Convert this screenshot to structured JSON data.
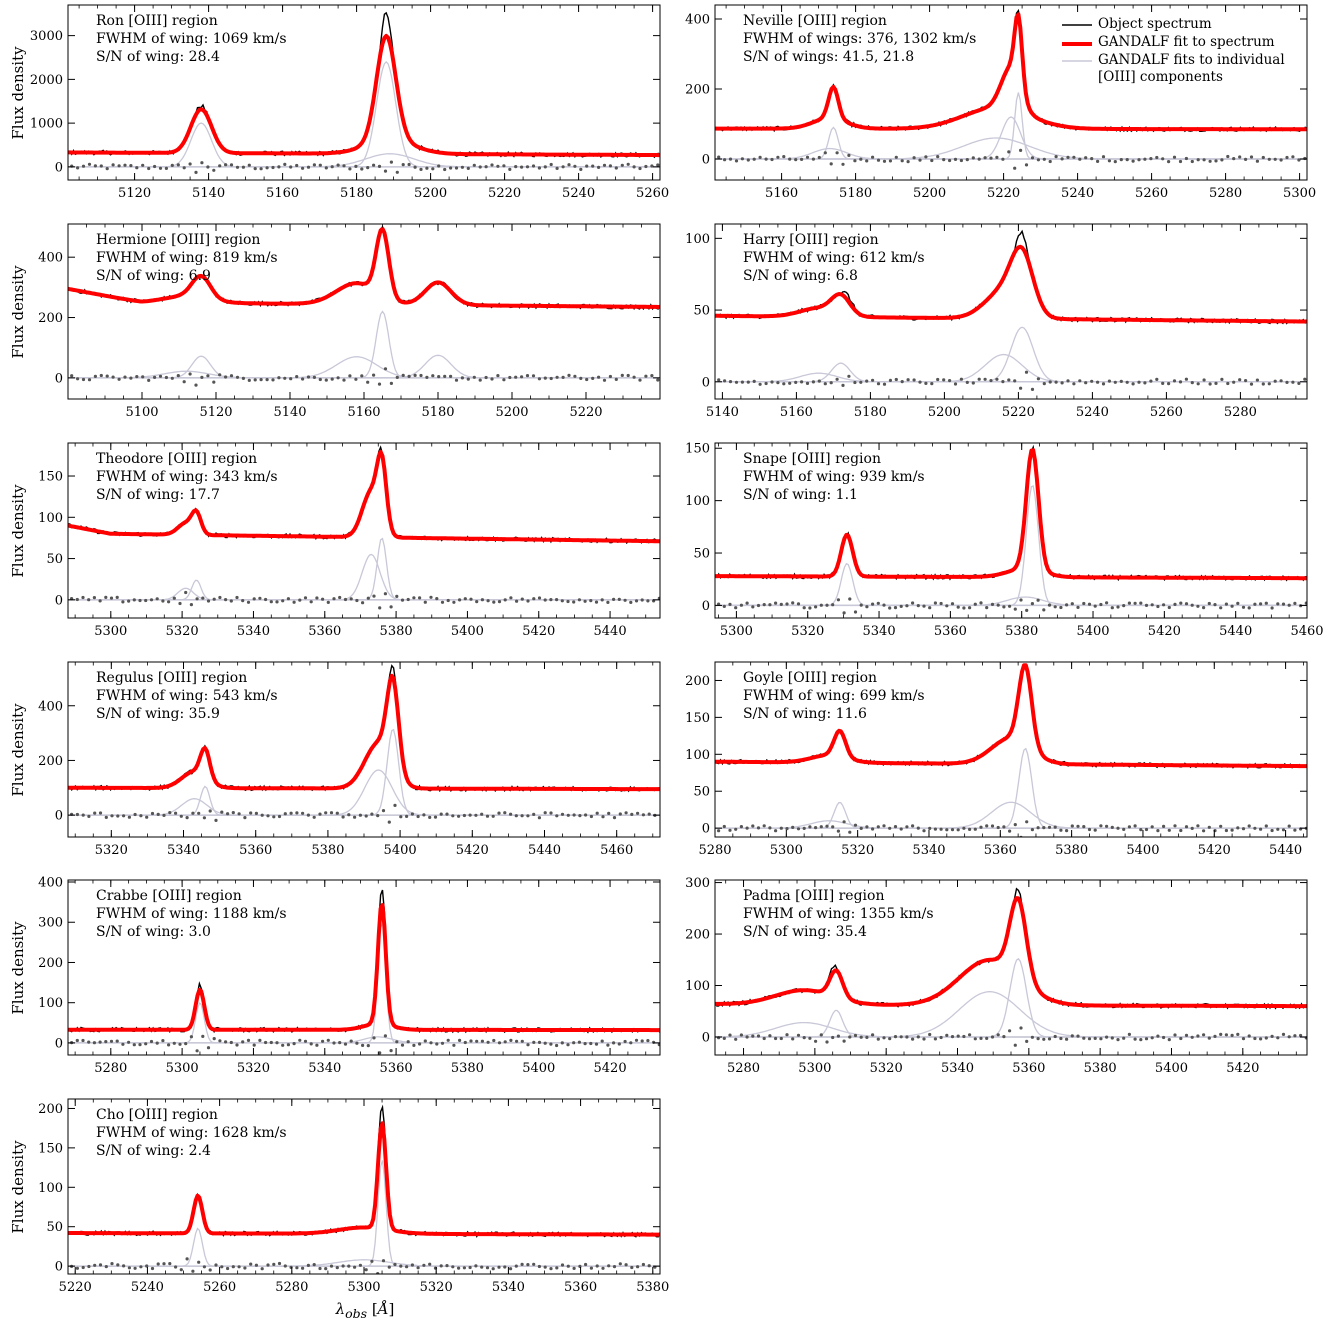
{
  "xlabel": "λobs [Å]",
  "ylabel": "Flux density",
  "legend": {
    "object": "Object spectrum",
    "fit": "GANDALF fit to spectrum",
    "components": "GANDALF fits to individual [OIII] components"
  },
  "colors": {
    "object": "#000000",
    "fit": "#ff0000",
    "components": "#c8c8d8",
    "residuals": "#555555"
  },
  "chart_data": [
    {
      "type": "line",
      "name": "Ron",
      "lines": [
        "Ron [OIII] region",
        "FWHM of wing: 1069 km/s",
        "S/N of wing: 28.4"
      ],
      "xlim": [
        5102,
        5262
      ],
      "ylim": [
        -300,
        3700
      ],
      "xticks": [
        5120,
        5140,
        5160,
        5180,
        5200,
        5220,
        5240,
        5260
      ],
      "yticks": [
        0,
        1000,
        2000,
        3000
      ],
      "continuum": [
        [
          5102,
          330
        ],
        [
          5262,
          270
        ]
      ],
      "components": [
        {
          "center": 5138,
          "sigma": 2.8,
          "amp": 1000
        },
        {
          "center": 5188,
          "sigma": 2.6,
          "amp": 2400
        },
        {
          "center": 5189,
          "sigma": 6.5,
          "amp": 300
        }
      ],
      "object_peaks": [
        [
          5138,
          1400
        ],
        [
          5188,
          3550
        ]
      ]
    },
    {
      "type": "line",
      "name": "Neville",
      "lines": [
        "Neville [OIII] region",
        "FWHM of wings: 376, 1302 km/s",
        "S/N of wings: 41.5, 21.8"
      ],
      "xlim": [
        5142,
        5302
      ],
      "ylim": [
        -60,
        440
      ],
      "xticks": [
        5160,
        5180,
        5200,
        5220,
        5240,
        5260,
        5280,
        5300
      ],
      "yticks": [
        0,
        200,
        400
      ],
      "continuum": [
        [
          5142,
          87
        ],
        [
          5302,
          85
        ]
      ],
      "components": [
        {
          "center": 5174,
          "sigma": 1.3,
          "amp": 90
        },
        {
          "center": 5222,
          "sigma": 2.6,
          "amp": 120
        },
        {
          "center": 5224,
          "sigma": 1.0,
          "amp": 190
        },
        {
          "center": 5218,
          "sigma": 9.0,
          "amp": 60
        },
        {
          "center": 5173,
          "sigma": 4.5,
          "amp": 30
        }
      ],
      "object_peaks": [
        [
          5174,
          195
        ],
        [
          5224,
          430
        ]
      ]
    },
    {
      "type": "line",
      "name": "Hermione",
      "lines": [
        "Hermione [OIII] region",
        "FWHM of wing: 819 km/s",
        "S/N of wing: 6.9"
      ],
      "xlim": [
        5080,
        5240
      ],
      "ylim": [
        -70,
        510
      ],
      "xticks": [
        5100,
        5120,
        5140,
        5160,
        5180,
        5200,
        5220
      ],
      "yticks": [
        0,
        200,
        400
      ],
      "continuum": [
        [
          5080,
          295
        ],
        [
          5100,
          250
        ],
        [
          5240,
          235
        ]
      ],
      "components": [
        {
          "center": 5116,
          "sigma": 2.5,
          "amp": 72
        },
        {
          "center": 5165,
          "sigma": 1.7,
          "amp": 220
        },
        {
          "center": 5158,
          "sigma": 5.5,
          "amp": 70
        },
        {
          "center": 5180,
          "sigma": 3.5,
          "amp": 75
        },
        {
          "center": 5112,
          "sigma": 6.0,
          "amp": 22
        }
      ],
      "object_peaks": [
        [
          5116,
          305
        ],
        [
          5165,
          490
        ]
      ]
    },
    {
      "type": "line",
      "name": "Harry",
      "lines": [
        "Harry [OIII] region",
        "FWHM of wing: 612 km/s",
        "S/N of wing: 6.8"
      ],
      "xlim": [
        5138,
        5298
      ],
      "ylim": [
        -12,
        110
      ],
      "xticks": [
        5140,
        5160,
        5180,
        5200,
        5220,
        5240,
        5260,
        5280
      ],
      "yticks": [
        0,
        50,
        100
      ],
      "continuum": [
        [
          5138,
          46
        ],
        [
          5298,
          42
        ]
      ],
      "components": [
        {
          "center": 5172,
          "sigma": 2.5,
          "amp": 13
        },
        {
          "center": 5221,
          "sigma": 3.0,
          "amp": 38
        },
        {
          "center": 5216,
          "sigma": 5.0,
          "amp": 19
        },
        {
          "center": 5166,
          "sigma": 5.0,
          "amp": 6
        }
      ],
      "object_peaks": [
        [
          5174,
          60
        ],
        [
          5221,
          104
        ]
      ]
    },
    {
      "type": "line",
      "name": "Theodore",
      "lines": [
        "Theodore [OIII] region",
        "FWHM of wing: 343 km/s",
        "S/N of wing: 17.7"
      ],
      "xlim": [
        5288,
        5454
      ],
      "ylim": [
        -22,
        190
      ],
      "xticks": [
        5300,
        5320,
        5340,
        5360,
        5380,
        5400,
        5420,
        5440
      ],
      "yticks": [
        0,
        50,
        100,
        150
      ],
      "continuum": [
        [
          5288,
          90
        ],
        [
          5300,
          80
        ],
        [
          5454,
          71
        ]
      ],
      "components": [
        {
          "center": 5324,
          "sigma": 1.3,
          "amp": 24
        },
        {
          "center": 5321,
          "sigma": 2.2,
          "amp": 14
        },
        {
          "center": 5376,
          "sigma": 1.3,
          "amp": 75
        },
        {
          "center": 5373,
          "sigma": 2.5,
          "amp": 55
        }
      ],
      "object_peaks": [
        [
          5324,
          103
        ],
        [
          5376,
          182
        ]
      ]
    },
    {
      "type": "line",
      "name": "Snape",
      "lines": [
        "Snape [OIII] region",
        "FWHM of wing: 939 km/s",
        "S/N of wing: 1.1"
      ],
      "xlim": [
        5294,
        5460
      ],
      "ylim": [
        -12,
        155
      ],
      "xticks": [
        5300,
        5320,
        5340,
        5360,
        5380,
        5400,
        5420,
        5440,
        5460
      ],
      "yticks": [
        0,
        50,
        100,
        150
      ],
      "continuum": [
        [
          5294,
          28
        ],
        [
          5460,
          26
        ]
      ],
      "components": [
        {
          "center": 5331,
          "sigma": 1.6,
          "amp": 40
        },
        {
          "center": 5383,
          "sigma": 1.7,
          "amp": 115
        },
        {
          "center": 5381,
          "sigma": 5.0,
          "amp": 8
        }
      ],
      "object_peaks": [
        [
          5331,
          68
        ],
        [
          5383,
          150
        ]
      ]
    },
    {
      "type": "line",
      "name": "Regulus",
      "lines": [
        "Regulus [OIII] region",
        "FWHM of wing: 543 km/s",
        "S/N of wing: 35.9"
      ],
      "xlim": [
        5308,
        5472
      ],
      "ylim": [
        -80,
        560
      ],
      "xticks": [
        5320,
        5340,
        5360,
        5380,
        5400,
        5420,
        5440,
        5460
      ],
      "yticks": [
        0,
        200,
        400
      ],
      "continuum": [
        [
          5308,
          100
        ],
        [
          5472,
          95
        ]
      ],
      "components": [
        {
          "center": 5346,
          "sigma": 1.3,
          "amp": 105
        },
        {
          "center": 5343,
          "sigma": 3.5,
          "amp": 60
        },
        {
          "center": 5398,
          "sigma": 1.6,
          "amp": 315
        },
        {
          "center": 5394,
          "sigma": 3.8,
          "amp": 165
        }
      ],
      "object_peaks": [
        [
          5346,
          245
        ],
        [
          5398,
          545
        ]
      ]
    },
    {
      "type": "line",
      "name": "Goyle",
      "lines": [
        "Goyle [OIII] region",
        "FWHM of wing: 699 km/s",
        "S/N of wing: 11.6"
      ],
      "xlim": [
        5280,
        5446
      ],
      "ylim": [
        -12,
        225
      ],
      "xticks": [
        5280,
        5300,
        5320,
        5340,
        5360,
        5380,
        5400,
        5420,
        5440
      ],
      "yticks": [
        0,
        50,
        100,
        150,
        200
      ],
      "continuum": [
        [
          5280,
          90
        ],
        [
          5330,
          88
        ],
        [
          5446,
          84
        ]
      ],
      "components": [
        {
          "center": 5315,
          "sigma": 1.6,
          "amp": 35
        },
        {
          "center": 5312,
          "sigma": 5.0,
          "amp": 10
        },
        {
          "center": 5367,
          "sigma": 1.8,
          "amp": 108
        },
        {
          "center": 5363,
          "sigma": 5.5,
          "amp": 35
        }
      ],
      "object_peaks": [
        [
          5315,
          130
        ],
        [
          5367,
          215
        ]
      ]
    },
    {
      "type": "line",
      "name": "Crabbe",
      "lines": [
        "Crabbe [OIII] region",
        "FWHM of wing: 1188 km/s",
        "S/N of wing: 3.0"
      ],
      "xlim": [
        5268,
        5434
      ],
      "ylim": [
        -30,
        405
      ],
      "xticks": [
        5280,
        5300,
        5320,
        5340,
        5360,
        5380,
        5400,
        5420
      ],
      "yticks": [
        0,
        100,
        200,
        300,
        400
      ],
      "continuum": [
        [
          5268,
          33
        ],
        [
          5434,
          32
        ]
      ],
      "components": [
        {
          "center": 5305,
          "sigma": 1.2,
          "amp": 100
        },
        {
          "center": 5356,
          "sigma": 1.1,
          "amp": 300
        },
        {
          "center": 5355,
          "sigma": 4.0,
          "amp": 15
        }
      ],
      "object_peaks": [
        [
          5305,
          145
        ],
        [
          5356,
          385
        ]
      ]
    },
    {
      "type": "line",
      "name": "Padma",
      "lines": [
        "Padma [OIII] region",
        "FWHM of wing: 1355 km/s",
        "S/N of wing: 35.4"
      ],
      "xlim": [
        5272,
        5438
      ],
      "ylim": [
        -35,
        305
      ],
      "xticks": [
        5280,
        5300,
        5320,
        5340,
        5360,
        5380,
        5400,
        5420
      ],
      "yticks": [
        0,
        100,
        200,
        300
      ],
      "continuum": [
        [
          5272,
          64
        ],
        [
          5320,
          62
        ],
        [
          5438,
          60
        ]
      ],
      "components": [
        {
          "center": 5306,
          "sigma": 1.8,
          "amp": 52
        },
        {
          "center": 5297,
          "sigma": 8.0,
          "amp": 28
        },
        {
          "center": 5357,
          "sigma": 2.3,
          "amp": 152
        },
        {
          "center": 5349,
          "sigma": 8.5,
          "amp": 88
        }
      ],
      "object_peaks": [
        [
          5305,
          135
        ],
        [
          5357,
          285
        ]
      ]
    },
    {
      "type": "line",
      "name": "Cho",
      "lines": [
        "Cho [OIII] region",
        "FWHM of wing: 1628 km/s",
        "S/N of wing: 2.4"
      ],
      "xlim": [
        5218,
        5382
      ],
      "ylim": [
        -10,
        212
      ],
      "xticks": [
        5220,
        5240,
        5260,
        5280,
        5300,
        5320,
        5340,
        5360,
        5380
      ],
      "yticks": [
        0,
        50,
        100,
        150,
        200
      ],
      "continuum": [
        [
          5218,
          42
        ],
        [
          5382,
          40
        ]
      ],
      "components": [
        {
          "center": 5254,
          "sigma": 1.2,
          "amp": 48
        },
        {
          "center": 5305,
          "sigma": 1.1,
          "amp": 135
        },
        {
          "center": 5300,
          "sigma": 7.0,
          "amp": 8
        }
      ],
      "object_peaks": [
        [
          5254,
          90
        ],
        [
          5305,
          205
        ]
      ]
    }
  ]
}
